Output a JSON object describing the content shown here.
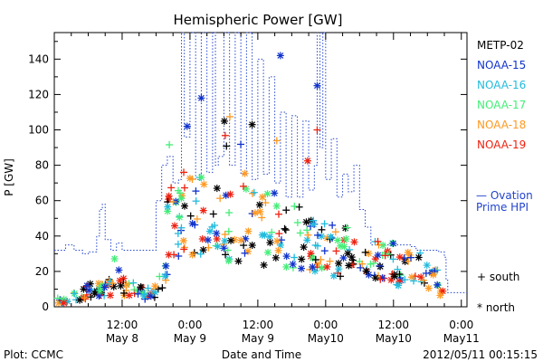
{
  "chart_data": {
    "type": "scatter",
    "title": "Hemispheric Power [GW]",
    "ylabel": "P [GW]",
    "xlabel": "Date and Time",
    "ylim": [
      0,
      155
    ],
    "yticks": [
      0,
      20,
      40,
      60,
      80,
      100,
      120,
      140
    ],
    "xticks": [
      {
        "t": 12,
        "line1": "12:00",
        "line2": "May 8"
      },
      {
        "t": 24,
        "line1": "0:00",
        "line2": "May 9"
      },
      {
        "t": 36,
        "line1": "12:00",
        "line2": "May 9"
      },
      {
        "t": 48,
        "line1": "0:00",
        "line2": "May10"
      },
      {
        "t": 60,
        "line1": "12:00",
        "line2": "May10"
      },
      {
        "t": 72,
        "line1": "0:00",
        "line2": "May11"
      }
    ],
    "xlim_hours_from_may8_0000": [
      0,
      73
    ],
    "legend_placement": "right",
    "series": [
      {
        "name": "METP-02",
        "color": "#000000"
      },
      {
        "name": "NOAA-15",
        "color": "#1133cc"
      },
      {
        "name": "NOAA-16",
        "color": "#22bbdd"
      },
      {
        "name": "NOAA-17",
        "color": "#44ee77"
      },
      {
        "name": "NOAA-18",
        "color": "#ff9922"
      },
      {
        "name": "NOAA-19",
        "color": "#ee2211"
      }
    ],
    "ovation": {
      "label_line1": "— Ovation",
      "label_line2": "Prime HPI",
      "color": "#2244cc",
      "steps": [
        [
          0,
          32
        ],
        [
          1.5,
          32
        ],
        [
          2,
          35
        ],
        [
          3,
          35
        ],
        [
          3.5,
          32
        ],
        [
          4,
          32
        ],
        [
          5,
          30
        ],
        [
          6,
          31
        ],
        [
          7.5,
          40
        ],
        [
          8,
          55
        ],
        [
          8.5,
          58
        ],
        [
          9,
          38
        ],
        [
          10,
          32
        ],
        [
          11,
          36
        ],
        [
          12,
          32
        ],
        [
          17,
          32
        ],
        [
          18,
          60
        ],
        [
          19,
          80
        ],
        [
          20,
          85
        ],
        [
          21,
          70
        ],
        [
          22,
          72
        ],
        [
          22.5,
          155
        ],
        [
          23,
          96
        ],
        [
          24,
          155
        ],
        [
          25,
          72
        ],
        [
          26,
          155
        ],
        [
          27,
          76
        ],
        [
          28,
          155
        ],
        [
          28.5,
          80
        ],
        [
          29,
          85
        ],
        [
          30,
          155
        ],
        [
          31,
          80
        ],
        [
          32,
          155
        ],
        [
          33,
          75
        ],
        [
          34,
          155
        ],
        [
          35,
          72
        ],
        [
          36,
          140
        ],
        [
          37,
          75
        ],
        [
          38,
          130
        ],
        [
          39,
          70
        ],
        [
          40,
          110
        ],
        [
          41,
          62
        ],
        [
          42,
          108
        ],
        [
          43,
          62
        ],
        [
          44,
          105
        ],
        [
          45,
          66
        ],
        [
          46,
          80
        ],
        [
          46.5,
          155
        ],
        [
          47,
          90
        ],
        [
          47.5,
          155
        ],
        [
          48,
          72
        ],
        [
          49,
          95
        ],
        [
          50,
          62
        ],
        [
          51,
          75
        ],
        [
          52,
          65
        ],
        [
          53,
          80
        ],
        [
          54,
          55
        ],
        [
          55,
          45
        ],
        [
          56,
          35
        ],
        [
          63,
          34
        ],
        [
          64,
          32
        ],
        [
          68,
          31
        ],
        [
          69,
          28
        ],
        [
          69.3,
          15
        ],
        [
          69.6,
          8
        ],
        [
          73,
          8
        ]
      ]
    },
    "markers_legend": {
      "south": "+ south",
      "north": "* north"
    }
  },
  "footer": {
    "plot_label": "Plot: CCMC",
    "timestamp": "2012/05/11 00:15:15"
  }
}
